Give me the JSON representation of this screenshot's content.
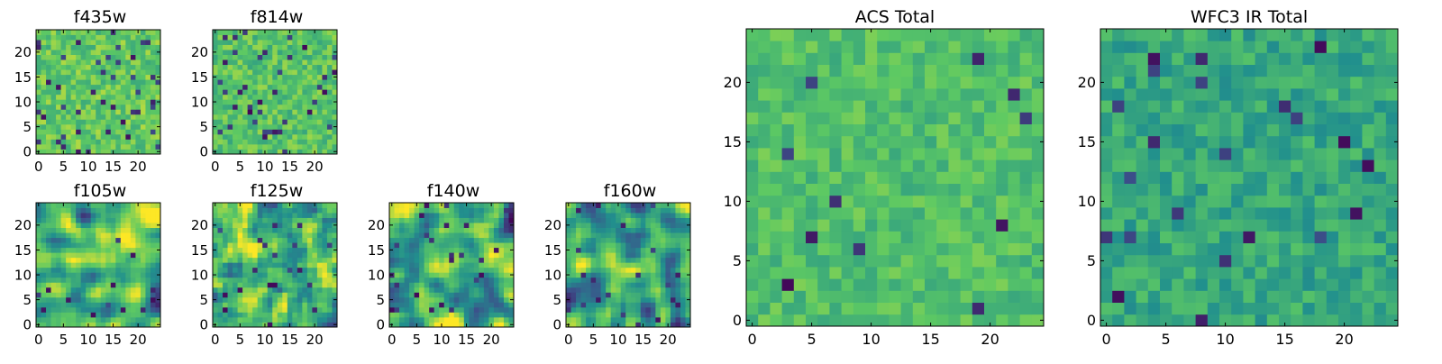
{
  "colormap": {
    "name": "viridis",
    "stops": [
      "#440154",
      "#3b528b",
      "#21908d",
      "#5dc963",
      "#fde725"
    ]
  },
  "chart_data": [
    {
      "type": "heatmap",
      "title": "f435w",
      "xticks": [
        "0",
        "5",
        "10",
        "15",
        "20"
      ],
      "yticks": [
        "0",
        "5",
        "10",
        "15",
        "20"
      ],
      "xlim": [
        0,
        24
      ],
      "ylim": [
        0,
        24
      ],
      "grid_size": [
        25,
        25
      ],
      "grid": false,
      "pattern": "pixel-scale noise",
      "vmin": 0,
      "vmax": 1,
      "seed": 11,
      "smooth": 0,
      "bias": 0.74,
      "spread": 0.45,
      "dark_fraction": 0.06
    },
    {
      "type": "heatmap",
      "title": "f814w",
      "xticks": [
        "0",
        "5",
        "10",
        "15",
        "20"
      ],
      "yticks": [
        "0",
        "5",
        "10",
        "15",
        "20"
      ],
      "xlim": [
        0,
        24
      ],
      "ylim": [
        0,
        24
      ],
      "grid_size": [
        25,
        25
      ],
      "grid": false,
      "pattern": "pixel-scale noise",
      "vmin": 0,
      "vmax": 1,
      "seed": 23,
      "smooth": 0,
      "bias": 0.72,
      "spread": 0.45,
      "dark_fraction": 0.07
    },
    {
      "type": "heatmap",
      "title": "f105w",
      "xticks": [
        "0",
        "5",
        "10",
        "15",
        "20"
      ],
      "yticks": [
        "0",
        "5",
        "10",
        "15",
        "20"
      ],
      "xlim": [
        0,
        24
      ],
      "ylim": [
        0,
        24
      ],
      "grid_size": [
        25,
        25
      ],
      "grid": false,
      "pattern": "spatially correlated",
      "vmin": 0,
      "vmax": 1,
      "seed": 37,
      "smooth": 2,
      "bias": 0.68,
      "spread": 1.0,
      "dark_fraction": 0.03
    },
    {
      "type": "heatmap",
      "title": "f125w",
      "xticks": [
        "0",
        "5",
        "10",
        "15",
        "20"
      ],
      "yticks": [
        "0",
        "5",
        "10",
        "15",
        "20"
      ],
      "xlim": [
        0,
        24
      ],
      "ylim": [
        0,
        24
      ],
      "grid_size": [
        25,
        25
      ],
      "grid": false,
      "pattern": "spatially correlated",
      "vmin": 0,
      "vmax": 1,
      "seed": 41,
      "smooth": 1,
      "bias": 0.66,
      "spread": 0.9,
      "dark_fraction": 0.05
    },
    {
      "type": "heatmap",
      "title": "f140w",
      "xticks": [
        "0",
        "5",
        "10",
        "15",
        "20"
      ],
      "yticks": [
        "0",
        "5",
        "10",
        "15",
        "20"
      ],
      "xlim": [
        0,
        24
      ],
      "ylim": [
        0,
        24
      ],
      "grid_size": [
        25,
        25
      ],
      "grid": false,
      "pattern": "spatially correlated",
      "vmin": 0,
      "vmax": 1,
      "seed": 53,
      "smooth": 2,
      "bias": 0.62,
      "spread": 1.1,
      "dark_fraction": 0.04
    },
    {
      "type": "heatmap",
      "title": "f160w",
      "xticks": [
        "0",
        "5",
        "10",
        "15",
        "20"
      ],
      "yticks": [
        "0",
        "5",
        "10",
        "15",
        "20"
      ],
      "xlim": [
        0,
        24
      ],
      "ylim": [
        0,
        24
      ],
      "grid_size": [
        25,
        25
      ],
      "grid": false,
      "pattern": "spatially correlated",
      "vmin": 0,
      "vmax": 1,
      "seed": 67,
      "smooth": 2,
      "bias": 0.58,
      "spread": 1.0,
      "dark_fraction": 0.05
    },
    {
      "type": "heatmap",
      "title": "ACS Total",
      "xticks": [
        "0",
        "5",
        "10",
        "15",
        "20"
      ],
      "yticks": [
        "0",
        "5",
        "10",
        "15",
        "20"
      ],
      "xlim": [
        0,
        24
      ],
      "ylim": [
        0,
        24
      ],
      "grid_size": [
        25,
        25
      ],
      "grid": false,
      "pattern": "pixel-scale noise",
      "vmin": 0,
      "vmax": 1,
      "seed": 79,
      "smooth": 0,
      "bias": 0.7,
      "spread": 0.35,
      "dark_fraction": 0.02
    },
    {
      "type": "heatmap",
      "title": "WFC3 IR Total",
      "xticks": [
        "0",
        "5",
        "10",
        "15",
        "20"
      ],
      "yticks": [
        "0",
        "5",
        "10",
        "15",
        "20"
      ],
      "xlim": [
        0,
        24
      ],
      "ylim": [
        0,
        24
      ],
      "grid_size": [
        25,
        25
      ],
      "grid": false,
      "pattern": "pixel-scale noise",
      "vmin": 0,
      "vmax": 1,
      "seed": 97,
      "smooth": 0,
      "bias": 0.6,
      "spread": 0.4,
      "dark_fraction": 0.03
    }
  ]
}
